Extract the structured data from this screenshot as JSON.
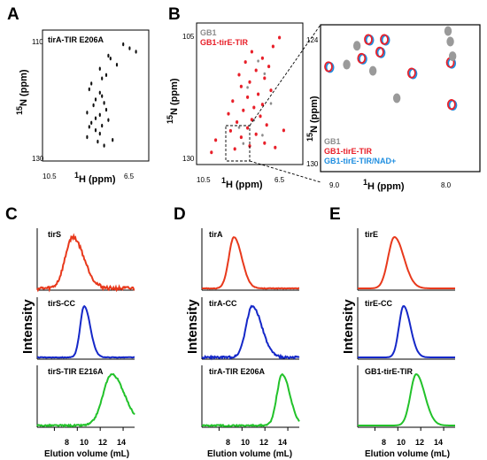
{
  "panels": {
    "A": {
      "letter": "A",
      "title": "tirA-TIR E206A",
      "xlabel_sup": "1",
      "xlabel": "H (ppm)",
      "ylabel_sup": "15",
      "ylabel": "N (ppm)",
      "xticks": [
        "10.5",
        "6.5"
      ],
      "yticks": [
        "110",
        "130"
      ]
    },
    "B": {
      "letter": "B",
      "legend": [
        {
          "label": "GB1",
          "color": "#8c8c8c"
        },
        {
          "label": "GB1-tirE-TIR",
          "color": "#e8202a"
        }
      ],
      "xlabel_sup": "1",
      "xlabel": "H (ppm)",
      "ylabel_sup": "15",
      "ylabel": "N (ppm)",
      "xticks": [
        "10.5",
        "6.5"
      ],
      "yticks": [
        "105",
        "130"
      ],
      "zoom": {
        "legend": [
          {
            "label": "GB1",
            "color": "#8c8c8c"
          },
          {
            "label": "GB1-tirE-TIR",
            "color": "#e8202a"
          },
          {
            "label": "GB1-tirE-TIR/NAD+",
            "color": "#1e8ee0"
          }
        ],
        "xticks": [
          "9.0",
          "8.0"
        ],
        "yticks": [
          "124",
          "130"
        ],
        "xlabel_sup": "1",
        "xlabel": "H (ppm)",
        "ylabel_sup": "15",
        "ylabel": "N (ppm)"
      }
    },
    "C": {
      "letter": "C",
      "traces": [
        {
          "label": "tirS",
          "color": "#e8391c"
        },
        {
          "label": "tirS-CC",
          "color": "#1528c8"
        },
        {
          "label": "tirS-TIR E216A",
          "color": "#22c22a"
        }
      ],
      "xticks": [
        "8",
        "10",
        "12",
        "14"
      ],
      "xlabel": "Elution volume (mL)",
      "ylabel": "Intensity"
    },
    "D": {
      "letter": "D",
      "traces": [
        {
          "label": "tirA",
          "color": "#e8391c"
        },
        {
          "label": "tirA-CC",
          "color": "#1528c8"
        },
        {
          "label": "tirA-TIR E206A",
          "color": "#22c22a"
        }
      ],
      "xticks": [
        "8",
        "10",
        "12",
        "14"
      ],
      "xlabel": "Elution volume (mL)",
      "ylabel": "Intensity"
    },
    "E": {
      "letter": "E",
      "traces": [
        {
          "label": "tirE",
          "color": "#e8391c"
        },
        {
          "label": "tirE-CC",
          "color": "#1528c8"
        },
        {
          "label": "GB1-tirE-TIR",
          "color": "#22c22a"
        }
      ],
      "xticks": [
        "8",
        "10",
        "12",
        "14"
      ],
      "xlabel": "Elution volume (mL)",
      "ylabel": "Intensity"
    }
  },
  "chart_data": [
    {
      "type": "scatter",
      "panel": "A",
      "series": [
        {
          "values": [
            [
              7.2,
              110.5
            ],
            [
              6.9,
              111.2
            ],
            [
              6.6,
              111.8
            ],
            [
              7.9,
              112.5
            ],
            [
              7.8,
              113.0
            ],
            [
              7.5,
              114.1
            ],
            [
              8.3,
              114.8
            ],
            [
              8.0,
              115.9
            ],
            [
              8.2,
              116.5
            ],
            [
              8.7,
              117.4
            ],
            [
              8.8,
              118.4
            ],
            [
              8.3,
              119.0
            ],
            [
              8.2,
              119.6
            ],
            [
              8.5,
              120.2
            ],
            [
              8.1,
              120.8
            ],
            [
              8.6,
              121.2
            ],
            [
              8.0,
              122.0
            ],
            [
              8.9,
              122.5
            ],
            [
              8.3,
              122.9
            ],
            [
              8.5,
              123.5
            ],
            [
              7.9,
              123.8
            ],
            [
              8.7,
              124.3
            ],
            [
              8.2,
              124.8
            ],
            [
              8.8,
              125.0
            ],
            [
              8.5,
              125.6
            ],
            [
              8.3,
              126.2
            ],
            [
              8.9,
              126.8
            ],
            [
              7.7,
              127.3
            ],
            [
              8.4,
              127.6
            ],
            [
              8.1,
              128.3
            ]
          ]
        }
      ],
      "xlim": [
        11.0,
        6.0
      ],
      "ylim": [
        108,
        131
      ]
    },
    {
      "type": "scatter",
      "panel": "B",
      "series": [
        {
          "name": "GB1",
          "values": [
            [
              8.1,
              110.8
            ],
            [
              7.8,
              113.4
            ],
            [
              8.6,
              116.2
            ],
            [
              7.5,
              119.5
            ],
            [
              8.3,
              122.9
            ],
            [
              9.0,
              124.4
            ],
            [
              7.9,
              126.0
            ],
            [
              8.8,
              127.7
            ]
          ]
        },
        {
          "name": "GB1-tirE-TIR",
          "values": [
            [
              7.1,
              106.0
            ],
            [
              7.4,
              107.8
            ],
            [
              8.4,
              108.9
            ],
            [
              7.9,
              110.2
            ],
            [
              8.7,
              111.0
            ],
            [
              7.6,
              111.9
            ],
            [
              8.2,
              112.7
            ],
            [
              9.0,
              113.6
            ],
            [
              7.8,
              114.3
            ],
            [
              8.5,
              115.1
            ],
            [
              8.9,
              116.0
            ],
            [
              7.5,
              116.8
            ],
            [
              8.1,
              117.6
            ],
            [
              8.6,
              118.2
            ],
            [
              9.3,
              119.0
            ],
            [
              7.9,
              119.7
            ],
            [
              8.3,
              120.3
            ],
            [
              8.8,
              120.9
            ],
            [
              9.5,
              121.6
            ],
            [
              8.0,
              122.1
            ],
            [
              8.4,
              122.8
            ],
            [
              9.1,
              123.3
            ],
            [
              7.7,
              123.9
            ],
            [
              8.6,
              124.5
            ],
            [
              9.4,
              125.1
            ],
            [
              8.2,
              125.8
            ],
            [
              8.9,
              126.4
            ],
            [
              10.1,
              127.0
            ],
            [
              7.8,
              127.6
            ],
            [
              8.5,
              128.2
            ],
            [
              9.2,
              128.8
            ],
            [
              10.3,
              129.5
            ],
            [
              7.3,
              128.5
            ],
            [
              6.9,
              125.0
            ]
          ]
        }
      ],
      "xlim": [
        11.0,
        6.0
      ],
      "ylim": [
        103,
        132
      ]
    },
    {
      "type": "scatter",
      "panel": "B-zoom",
      "series": [
        {
          "name": "GB1",
          "values": [
            [
              8.88,
              124.5
            ],
            [
              8.97,
              125.4
            ],
            [
              8.74,
              125.7
            ],
            [
              8.53,
              127.0
            ],
            [
              8.08,
              123.8
            ],
            [
              8.06,
              124.3
            ],
            [
              8.04,
              125.0
            ]
          ]
        },
        {
          "name": "GB1-tirE-TIR",
          "values": [
            [
              9.13,
              125.5
            ],
            [
              8.84,
              125.1
            ],
            [
              8.78,
              124.2
            ],
            [
              8.68,
              124.8
            ],
            [
              8.64,
              124.2
            ],
            [
              8.4,
              125.8
            ],
            [
              8.06,
              125.3
            ],
            [
              8.05,
              127.3
            ]
          ]
        },
        {
          "name": "GB1-tirE-TIR/NAD+",
          "values": [
            [
              9.13,
              125.5
            ],
            [
              8.84,
              125.1
            ],
            [
              8.78,
              124.2
            ],
            [
              8.68,
              124.8
            ],
            [
              8.64,
              124.2
            ],
            [
              8.4,
              125.8
            ],
            [
              8.06,
              125.3
            ],
            [
              8.05,
              127.3
            ]
          ]
        }
      ],
      "xlim": [
        9.2,
        7.8
      ],
      "ylim": [
        123.5,
        130.5
      ]
    },
    {
      "type": "line",
      "panel": "C",
      "series": [
        {
          "name": "tirS",
          "peak": 9.6,
          "width": 0.65,
          "noise": 0.07
        },
        {
          "name": "tirS-CC",
          "peak": 10.6,
          "width": 0.35,
          "noise": 0.01
        },
        {
          "name": "tirS-TIR E216A",
          "peak": 13.0,
          "width": 0.75,
          "noise": 0.03
        }
      ],
      "xlim": [
        6.5,
        15
      ],
      "xlabel": "Elution volume (mL)",
      "ylabel": "Intensity"
    },
    {
      "type": "line",
      "panel": "D",
      "series": [
        {
          "name": "tirA",
          "peak": 9.3,
          "width": 0.45,
          "noise": 0.01
        },
        {
          "name": "tirA-CC",
          "peak": 10.9,
          "width": 0.55,
          "noise": 0.04
        },
        {
          "name": "tirA-TIR E206A",
          "peak": 13.5,
          "width": 0.45,
          "noise": 0.03
        }
      ],
      "xlim": [
        6.5,
        15
      ],
      "xlabel": "Elution volume (mL)",
      "ylabel": "Intensity"
    },
    {
      "type": "line",
      "panel": "E",
      "series": [
        {
          "name": "tirE",
          "peak": 9.7,
          "width": 0.55,
          "noise": 0.0
        },
        {
          "name": "tirE-CC",
          "peak": 10.5,
          "width": 0.4,
          "noise": 0.0
        },
        {
          "name": "GB1-tirE-TIR",
          "peak": 11.6,
          "width": 0.5,
          "noise": 0.0
        }
      ],
      "xlim": [
        6.5,
        15
      ],
      "xlabel": "Elution volume (mL)",
      "ylabel": "Intensity"
    }
  ]
}
